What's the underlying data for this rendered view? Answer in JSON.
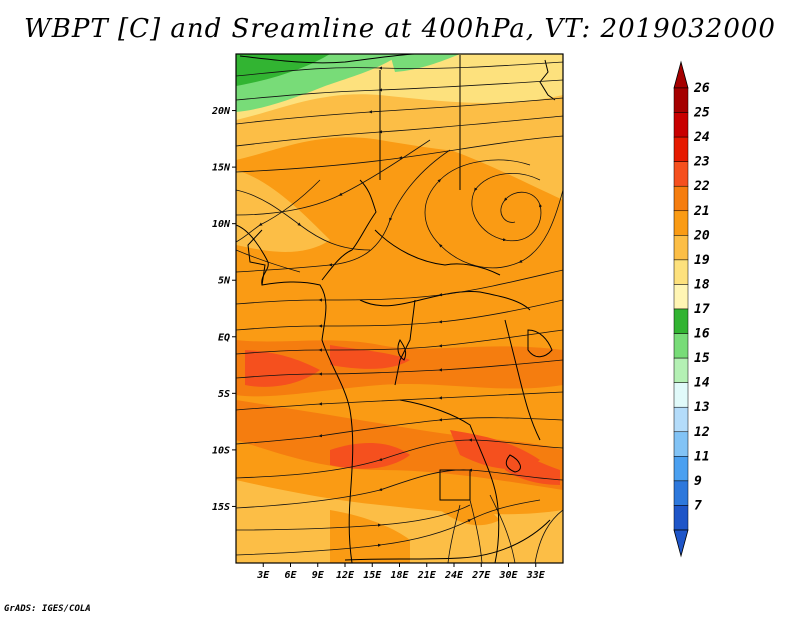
{
  "title": "WBPT [C] and Sreamline at 400hPa, VT: 2019032000",
  "credit": "GrADS: IGES/COLA",
  "map": {
    "lon_range": [
      0,
      36
    ],
    "lat_range": [
      -20,
      25
    ],
    "lat_ticks": [
      {
        "value": 20,
        "label": "20N"
      },
      {
        "value": 15,
        "label": "15N"
      },
      {
        "value": 10,
        "label": "10N"
      },
      {
        "value": 5,
        "label": "5N"
      },
      {
        "value": 0,
        "label": "EQ"
      },
      {
        "value": -5,
        "label": "5S"
      },
      {
        "value": -10,
        "label": "10S"
      },
      {
        "value": -15,
        "label": "15S"
      }
    ],
    "lon_ticks": [
      {
        "value": 3,
        "label": "3E"
      },
      {
        "value": 6,
        "label": "6E"
      },
      {
        "value": 9,
        "label": "9E"
      },
      {
        "value": 12,
        "label": "12E"
      },
      {
        "value": 15,
        "label": "15E"
      },
      {
        "value": 18,
        "label": "18E"
      },
      {
        "value": 21,
        "label": "21E"
      },
      {
        "value": 24,
        "label": "24E"
      },
      {
        "value": 27,
        "label": "27E"
      },
      {
        "value": 30,
        "label": "30E"
      },
      {
        "value": 33,
        "label": "33E"
      }
    ]
  },
  "colorbar": {
    "levels": [
      {
        "label": "26",
        "color": "#a50000"
      },
      {
        "label": "25",
        "color": "#c80000"
      },
      {
        "label": "24",
        "color": "#e61a00"
      },
      {
        "label": "23",
        "color": "#f5501e"
      },
      {
        "label": "22",
        "color": "#f57d0f"
      },
      {
        "label": "21",
        "color": "#fa9b14"
      },
      {
        "label": "20",
        "color": "#fcbe46"
      },
      {
        "label": "19",
        "color": "#fde17d"
      },
      {
        "label": "18",
        "color": "#fff5b4"
      },
      {
        "label": "17",
        "color": "#32b432"
      },
      {
        "label": "16",
        "color": "#78dc78"
      },
      {
        "label": "15",
        "color": "#b4f0b4"
      },
      {
        "label": "14",
        "color": "#e1fafa"
      },
      {
        "label": "13",
        "color": "#b4dcfa"
      },
      {
        "label": "12",
        "color": "#82c3f5"
      },
      {
        "label": "11",
        "color": "#4ba0f0"
      },
      {
        "label": "9",
        "color": "#2d78dc"
      },
      {
        "label": "7",
        "color": "#1e55c8"
      }
    ]
  }
}
